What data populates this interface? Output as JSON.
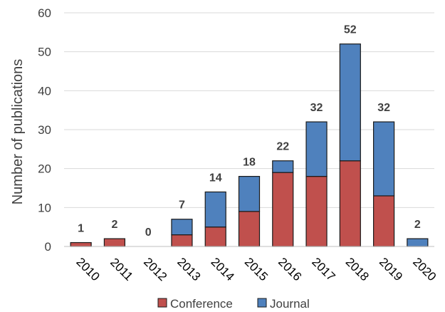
{
  "chart_data": {
    "type": "bar",
    "stacked": true,
    "title": "",
    "xlabel": "",
    "ylabel": "Number of publications",
    "ylim": [
      0,
      60
    ],
    "yticks": [
      0,
      10,
      20,
      30,
      40,
      50,
      60
    ],
    "grid": "horizontal",
    "legend_position": "bottom",
    "categories": [
      "2010",
      "2011",
      "2012",
      "2013",
      "2014",
      "2015",
      "2016",
      "2017",
      "2018",
      "2019",
      "2020"
    ],
    "series": [
      {
        "name": "Conference",
        "color": "#c0504d",
        "values": [
          1,
          2,
          0,
          3,
          5,
          9,
          19,
          18,
          22,
          13,
          0
        ]
      },
      {
        "name": "Journal",
        "color": "#4f81bd",
        "values": [
          0,
          0,
          0,
          4,
          9,
          9,
          3,
          14,
          30,
          19,
          2
        ]
      }
    ],
    "totals": [
      "1",
      "2",
      "0",
      "7",
      "14",
      "18",
      "22",
      "32",
      "52",
      "32",
      "2"
    ]
  }
}
